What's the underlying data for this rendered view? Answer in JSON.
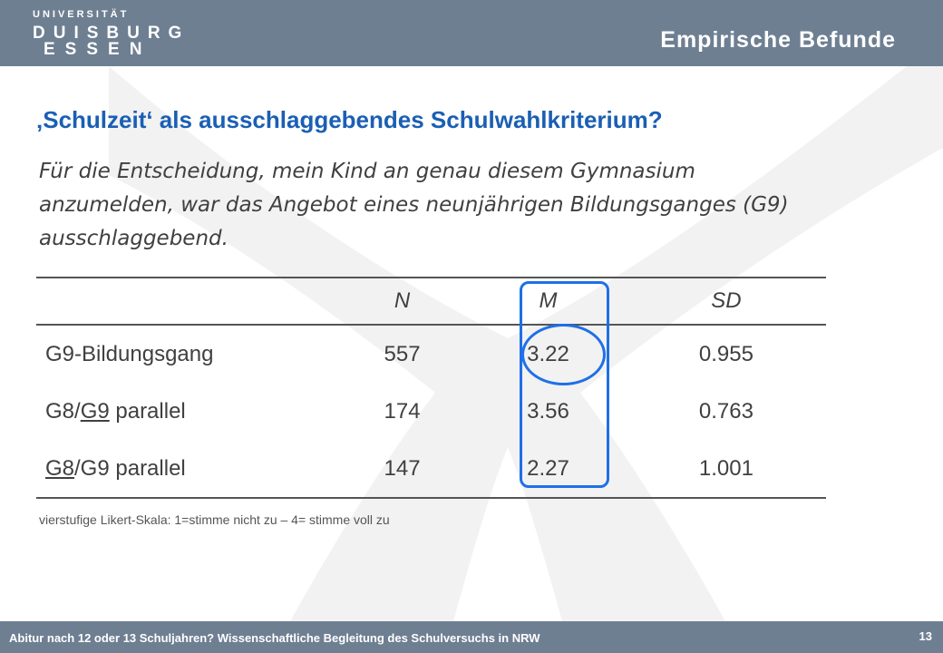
{
  "header": {
    "logo_line1": "UNIVERSITÄT",
    "logo_line2": "DUISBURG",
    "logo_line3": "ESSEN",
    "title": "Empirische Befunde"
  },
  "slide": {
    "title": "‚Schulzeit‘ als ausschlaggebendes Schulwahlkriterium?",
    "question": "Für die Entscheidung, mein Kind an genau diesem Gymnasium anzumelden, war das Angebot eines neunjährigen Bildungsganges (G9) ausschlaggebend."
  },
  "table": {
    "headers": [
      "",
      "N",
      "M",
      "SD"
    ],
    "rows": [
      {
        "label": "G9-Bildungsgang",
        "n": "557",
        "m": "3.22",
        "sd": "0.955"
      },
      {
        "label_a": "G8/",
        "label_b": "G9",
        "label_c": " parallel",
        "n": "174",
        "m": "3.56",
        "sd": "0.763"
      },
      {
        "label_a": "G8",
        "label_b": "/G9 parallel",
        "n": "147",
        "m": "2.27",
        "sd": "1.001"
      }
    ]
  },
  "note": "vierstufige Likert-Skala: 1=stimme nicht zu – 4= stimme voll zu",
  "footer": {
    "text": "Abitur nach 12 oder 13 Schuljahren? Wissenschaftliche Begleitung des Schulversuchs in NRW",
    "page": "13"
  },
  "colors": {
    "header_bg": "#6e7f92",
    "title": "#1a5fb4",
    "highlight": "#1f6fe8"
  }
}
